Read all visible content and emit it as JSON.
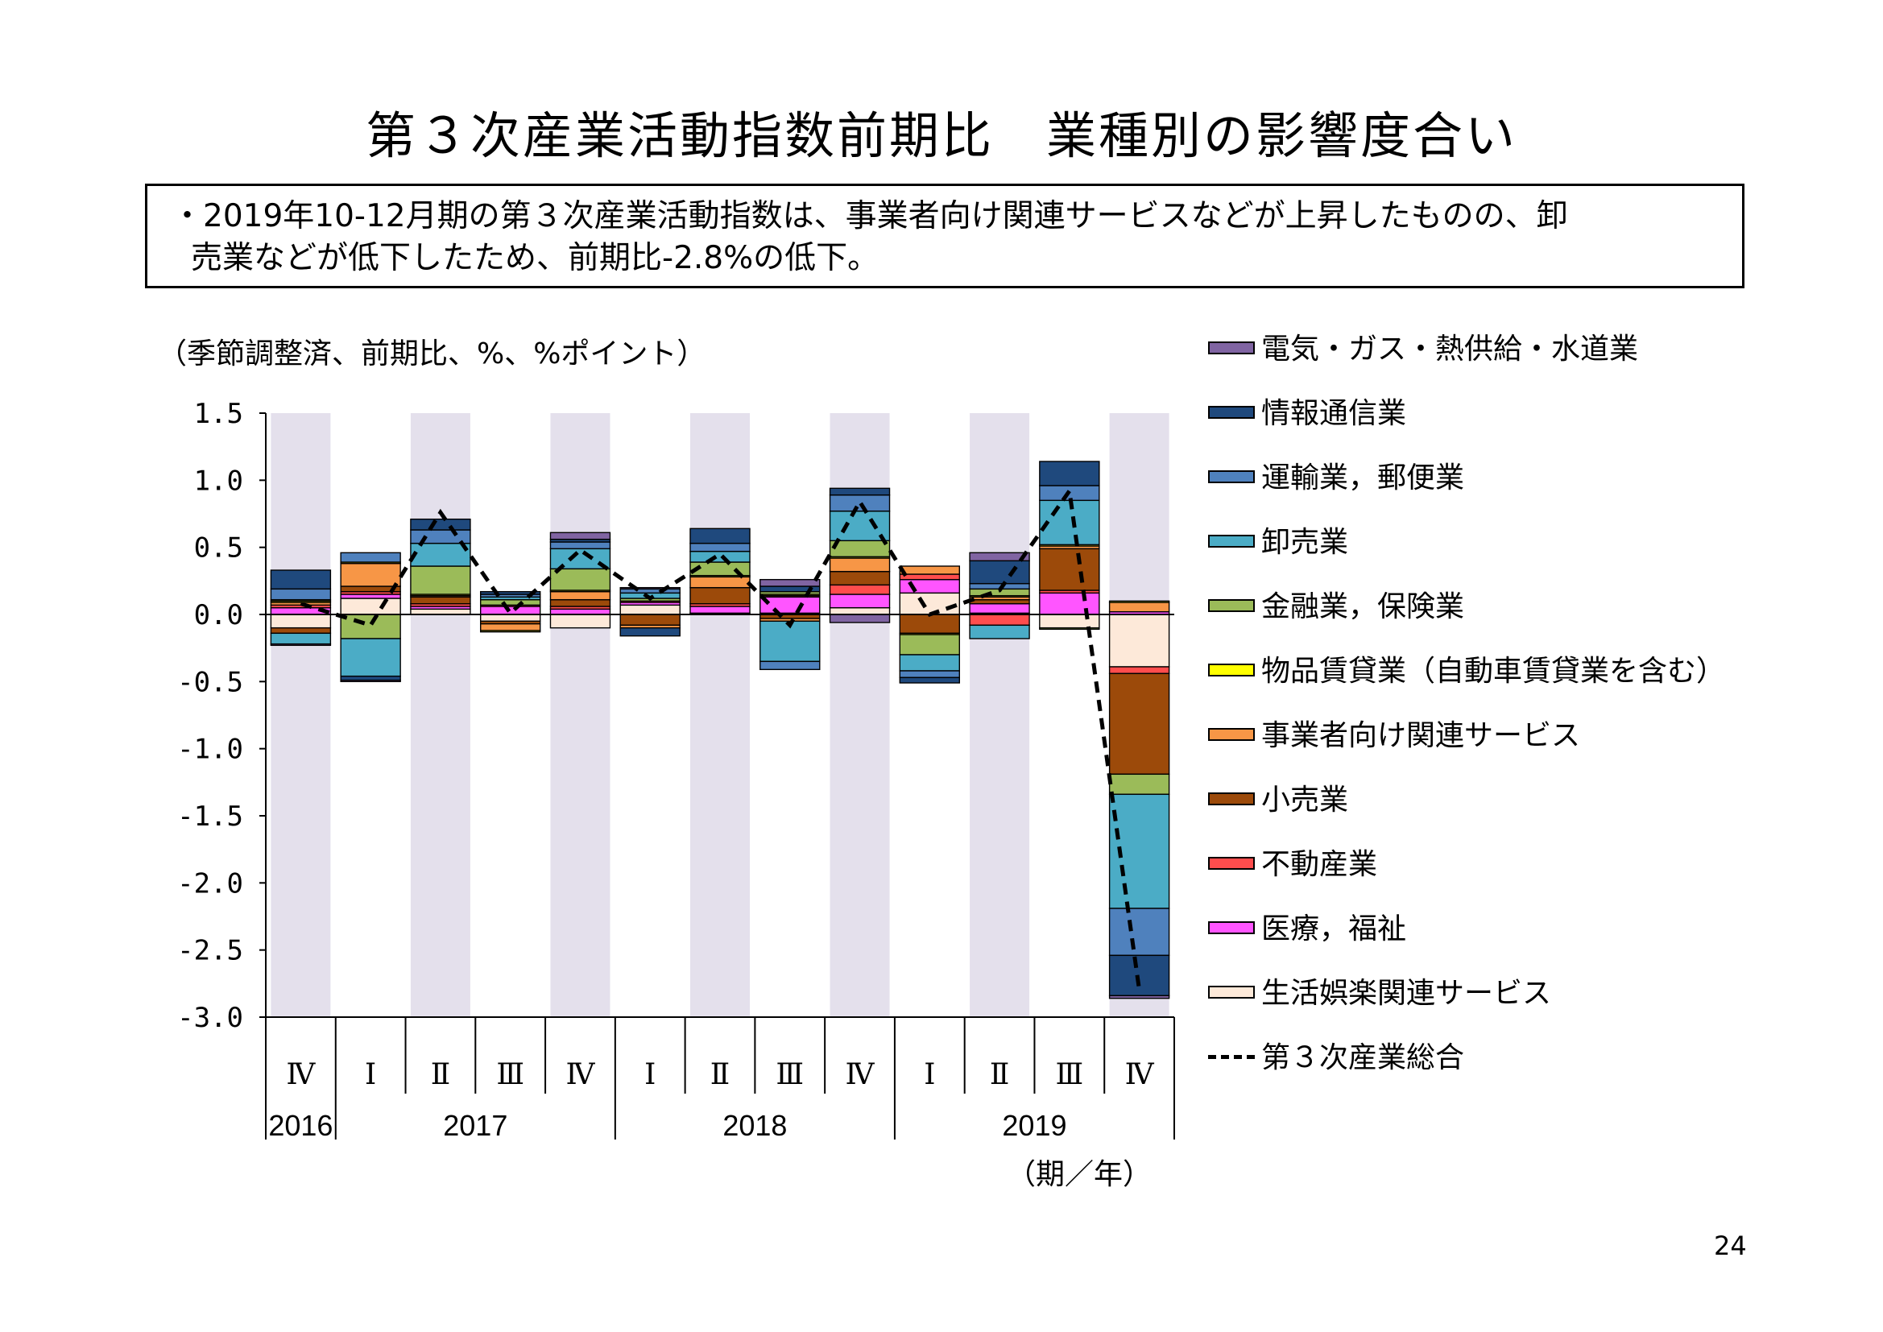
{
  "page": {
    "title": "第３次産業活動指数前期比　業種別の影響度合い",
    "summary_line1": "・2019年10-12月期の第３次産業活動指数は、事業者向け関連サービスなどが上昇したものの、卸",
    "summary_line2": "売業などが低下したため、前期比-2.8%の低下。",
    "unit_label": "（季節調整済、前期比、%、%ポイント）",
    "x_unit_label": "（期／年）",
    "page_number": "24"
  },
  "chart_data": {
    "type": "bar",
    "stacked": true,
    "ylim": [
      -3.0,
      1.5
    ],
    "yticks": [
      "1.5",
      "1.0",
      "0.5",
      "0.0",
      "-0.5",
      "-1.0",
      "-1.5",
      "-2.0",
      "-2.5",
      "-3.0"
    ],
    "ytick_values": [
      1.5,
      1.0,
      0.5,
      0.0,
      -0.5,
      -1.0,
      -1.5,
      -2.0,
      -2.5,
      -3.0
    ],
    "categories": [
      "Ⅳ",
      "Ⅰ",
      "Ⅱ",
      "Ⅲ",
      "Ⅳ",
      "Ⅰ",
      "Ⅱ",
      "Ⅲ",
      "Ⅳ",
      "Ⅰ",
      "Ⅱ",
      "Ⅲ",
      "Ⅳ"
    ],
    "years": [
      {
        "label": "2016",
        "start": 0,
        "end": 0
      },
      {
        "label": "2017",
        "start": 1,
        "end": 4
      },
      {
        "label": "2018",
        "start": 5,
        "end": 8
      },
      {
        "label": "2019",
        "start": 9,
        "end": 12
      }
    ],
    "shaded_categories": [
      0,
      2,
      4,
      6,
      8,
      10,
      12
    ],
    "shade_color": "#e4e0ec",
    "legend_position": "right",
    "series": [
      {
        "name": "生活娯楽関連サービス",
        "color": "#fde9d9",
        "values": [
          -0.1,
          0.12,
          0.04,
          -0.05,
          -0.1,
          0.07,
          0.01,
          0.01,
          0.05,
          0.16,
          0.01,
          -0.1,
          -0.39
        ]
      },
      {
        "name": "医療，福祉",
        "color": "#ff55ff",
        "values": [
          0.05,
          0.03,
          0.02,
          0.06,
          0.04,
          0.02,
          0.05,
          0.12,
          0.1,
          0.1,
          0.07,
          0.16,
          0.02
        ]
      },
      {
        "name": "不動産業",
        "color": "#ff4d4d",
        "values": [
          0.02,
          0.02,
          0.02,
          0.01,
          0.02,
          0.01,
          0.02,
          0.01,
          0.07,
          0.04,
          -0.08,
          0.02,
          -0.05
        ]
      },
      {
        "name": "小売業",
        "color": "#9c4a0a",
        "values": [
          -0.04,
          0.04,
          0.05,
          -0.02,
          0.05,
          -0.08,
          0.12,
          -0.03,
          0.1,
          -0.14,
          0.03,
          0.31,
          -0.75
        ]
      },
      {
        "name": "事業者向け関連サービス",
        "color": "#f79646",
        "values": [
          0.02,
          0.17,
          0.01,
          -0.05,
          0.06,
          -0.02,
          0.08,
          -0.02,
          0.1,
          0.06,
          0.02,
          0.02,
          0.07
        ]
      },
      {
        "name": "物品賃貸業（自動車賃貸業を含む）",
        "color": "#ffff00",
        "values": [
          0.01,
          0.01,
          0.01,
          -0.01,
          0.01,
          0.0,
          0.01,
          0.01,
          0.01,
          -0.01,
          0.01,
          0.01,
          0.01
        ]
      },
      {
        "name": "金融業，保険業",
        "color": "#9bbb59",
        "values": [
          0.01,
          -0.18,
          0.21,
          0.04,
          0.16,
          0.02,
          0.1,
          0.02,
          0.12,
          -0.15,
          0.05,
          -0.01,
          -0.15
        ]
      },
      {
        "name": "卸売業",
        "color": "#4bacc6",
        "values": [
          -0.08,
          -0.28,
          0.17,
          0.02,
          0.15,
          0.04,
          0.08,
          -0.3,
          0.22,
          -0.12,
          -0.1,
          0.33,
          -0.85
        ]
      },
      {
        "name": "運輸業，郵便業",
        "color": "#4f81bd",
        "values": [
          0.08,
          0.07,
          0.1,
          0.02,
          0.05,
          0.03,
          0.06,
          -0.06,
          0.12,
          -0.05,
          0.04,
          0.11,
          -0.35
        ]
      },
      {
        "name": "情報通信業",
        "color": "#1f497d",
        "values": [
          0.14,
          -0.03,
          0.08,
          0.02,
          0.02,
          -0.06,
          0.11,
          0.04,
          0.05,
          -0.04,
          0.17,
          0.18,
          -0.3
        ]
      },
      {
        "name": "電気・ガス・熱供給・水道業",
        "color": "#8064a2",
        "values": [
          -0.01,
          -0.01,
          0.0,
          0.0,
          0.05,
          0.01,
          0.0,
          0.05,
          -0.06,
          0.0,
          0.06,
          0.0,
          -0.02
        ]
      }
    ],
    "total": {
      "name": "第３次産業総合",
      "values": [
        0.08,
        -0.08,
        0.76,
        0.01,
        0.48,
        0.12,
        0.45,
        -0.08,
        0.84,
        0.0,
        0.18,
        0.92,
        -2.8
      ]
    },
    "legend_order": [
      "電気・ガス・熱供給・水道業",
      "情報通信業",
      "運輸業，郵便業",
      "卸売業",
      "金融業，保険業",
      "物品賃貸業（自動車賃貸業を含む）",
      "事業者向け関連サービス",
      "小売業",
      "不動産業",
      "医療，福祉",
      "生活娯楽関連サービス"
    ]
  }
}
